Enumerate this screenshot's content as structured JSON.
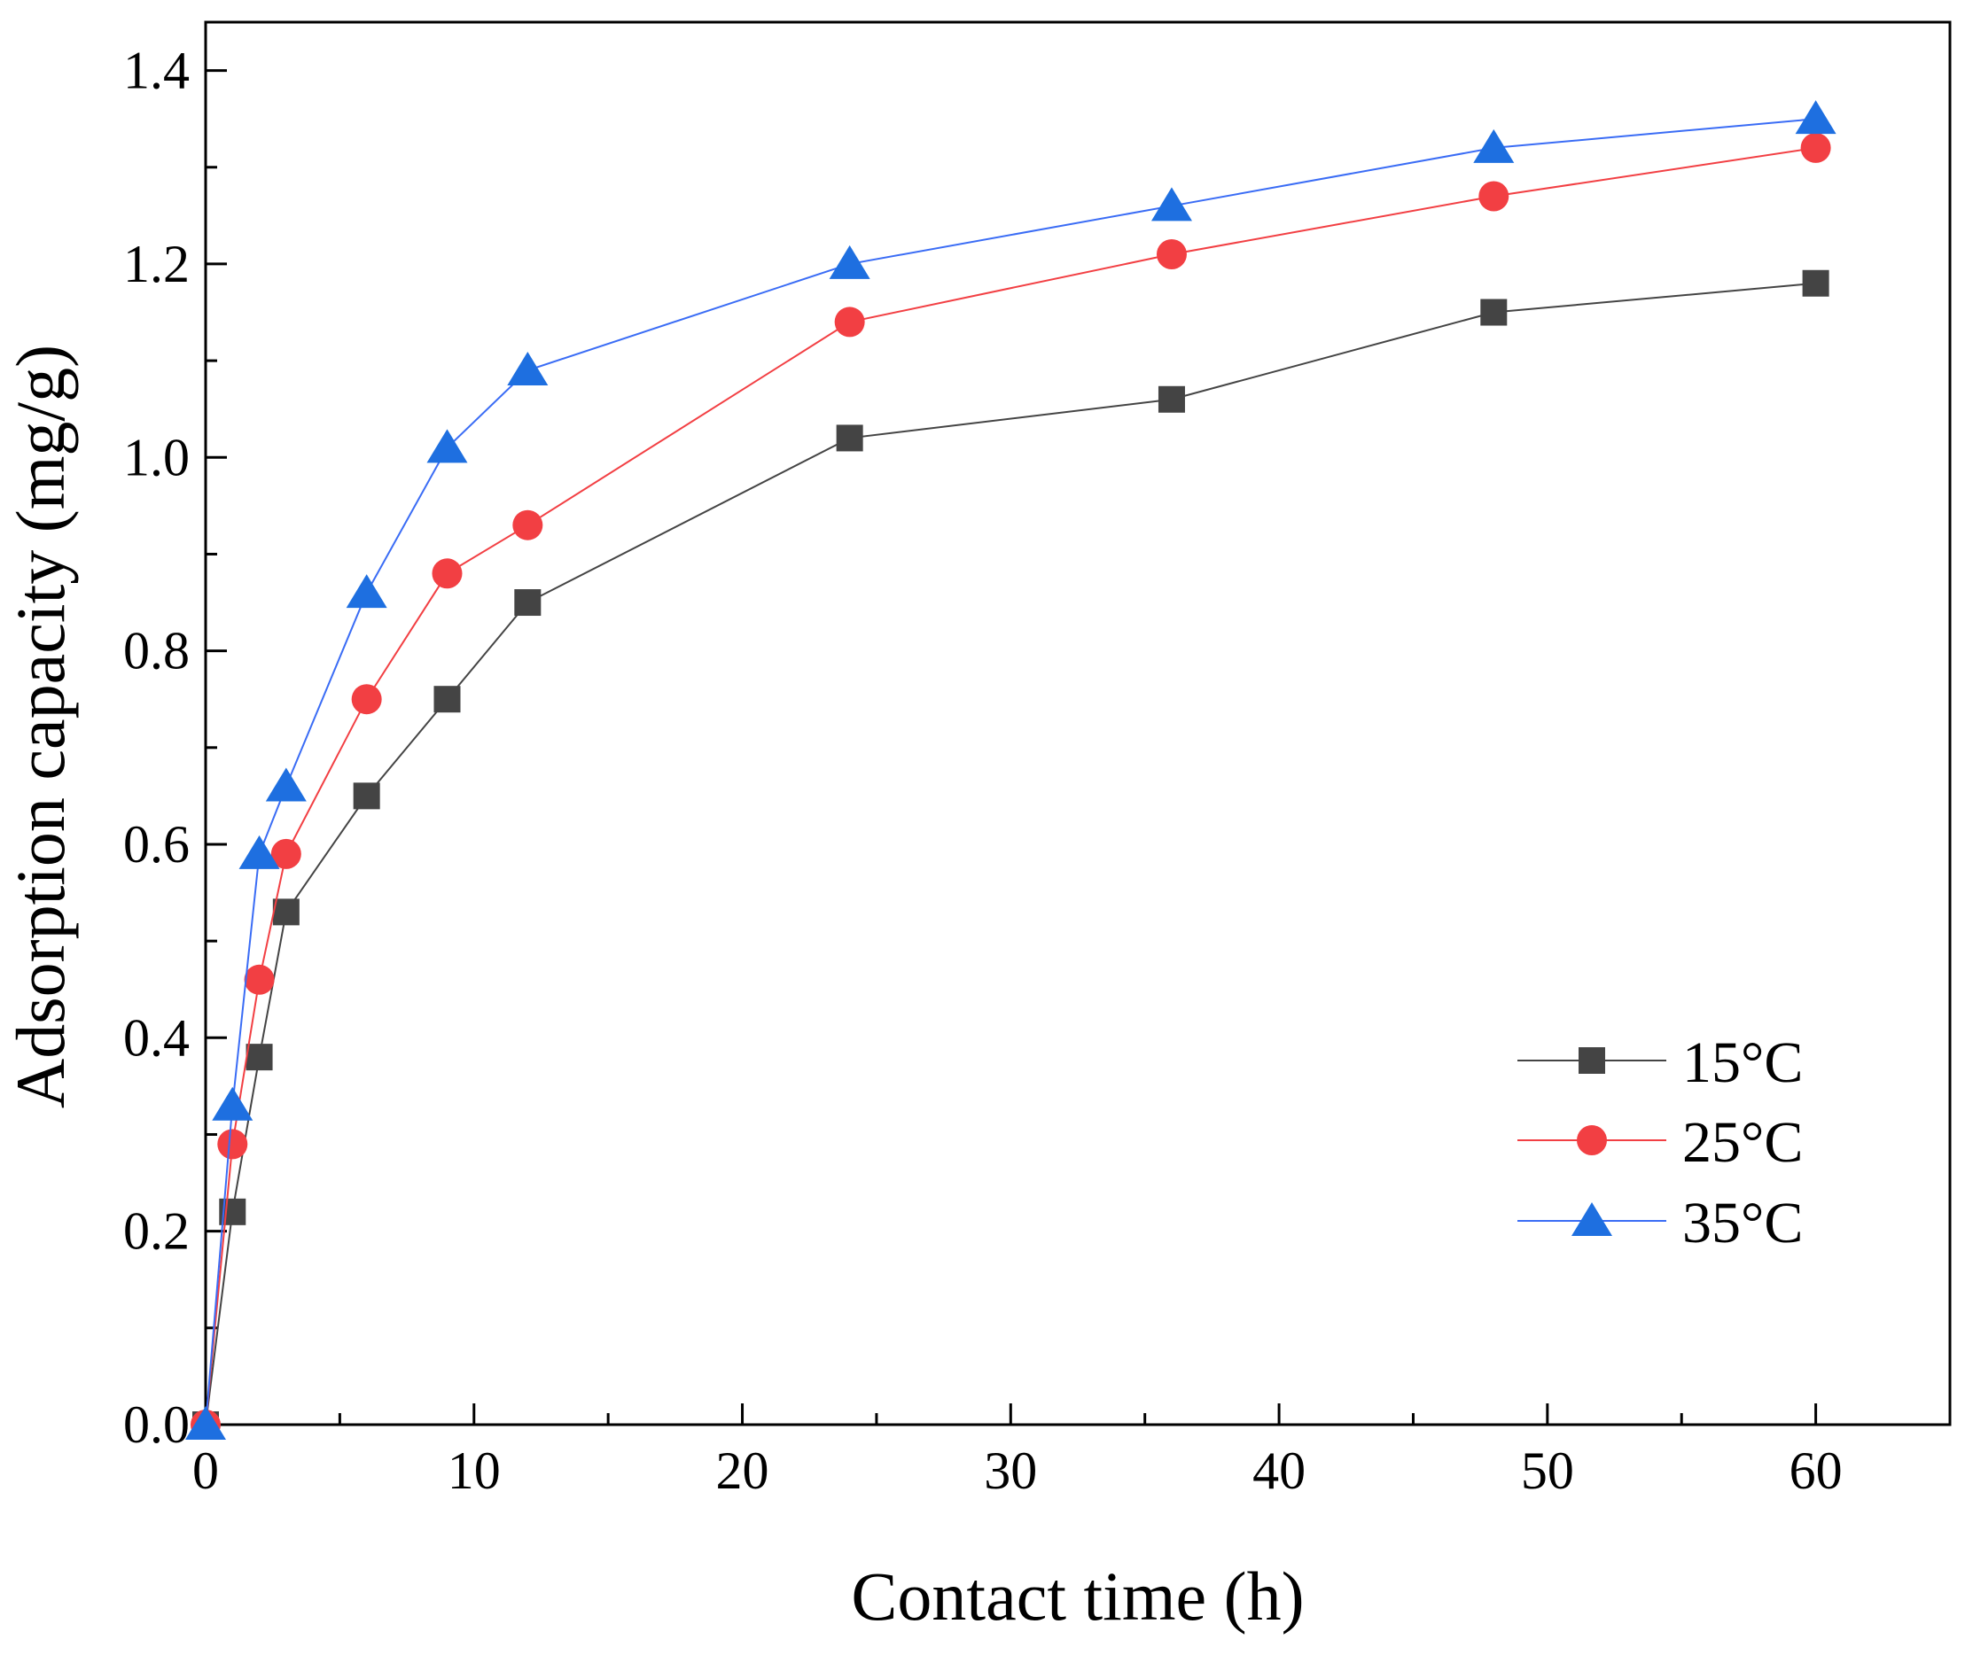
{
  "chart_data": {
    "type": "line",
    "title": "",
    "xlabel": "Contact time (h)",
    "ylabel": "Adsorption capacity (mg/g)",
    "xlim": [
      0,
      65
    ],
    "ylim": [
      0,
      1.45
    ],
    "x_ticks": [
      0,
      10,
      20,
      30,
      40,
      50,
      60
    ],
    "x_tick_labels": [
      "0",
      "10",
      "20",
      "30",
      "40",
      "50",
      "60"
    ],
    "x_minor_ticks": [
      5,
      15,
      25,
      35,
      45,
      55,
      65
    ],
    "y_ticks": [
      0,
      0.2,
      0.4,
      0.6,
      0.8,
      1.0,
      1.2,
      1.4
    ],
    "y_tick_labels": [
      "0.0",
      "0.2",
      "0.4",
      "0.6",
      "0.8",
      "1.0",
      "1.2",
      "1.4"
    ],
    "y_minor_ticks": [
      0.1,
      0.3,
      0.5,
      0.7,
      0.9,
      1.1,
      1.3
    ],
    "grid": false,
    "legend_position": "bottom-right",
    "x": [
      0,
      1,
      2,
      3,
      6,
      9,
      12,
      24,
      36,
      48,
      60
    ],
    "series": [
      {
        "name": "15°C",
        "marker": "square",
        "color": "#444444",
        "line_color": "#444444",
        "values": [
          0,
          0.22,
          0.38,
          0.53,
          0.65,
          0.75,
          0.85,
          1.02,
          1.06,
          1.15,
          1.18
        ]
      },
      {
        "name": "25°C",
        "marker": "circle",
        "color": "#f23f43",
        "line_color": "#f23f43",
        "values": [
          0,
          0.29,
          0.46,
          0.59,
          0.75,
          0.88,
          0.93,
          1.14,
          1.21,
          1.27,
          1.32
        ]
      },
      {
        "name": "35°C",
        "marker": "triangle",
        "color": "#1e6fe0",
        "line_color": "#3a6cf5",
        "values": [
          0,
          0.33,
          0.59,
          0.66,
          0.86,
          1.01,
          1.09,
          1.2,
          1.26,
          1.32,
          1.35
        ]
      }
    ]
  }
}
